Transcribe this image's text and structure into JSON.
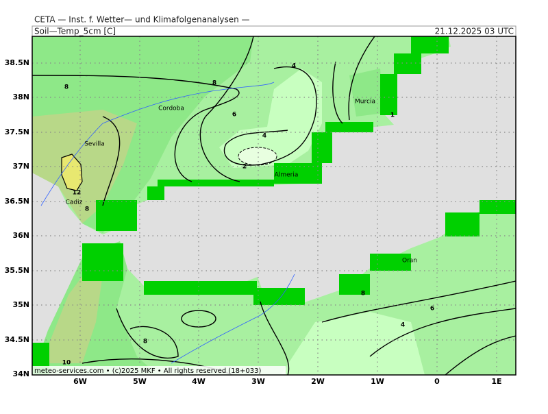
{
  "header": {
    "title": "CETA — Inst. f. Wetter— und Klimafolgenanalysen —",
    "parameter": "Soil—Temp_5cm [C]",
    "valid_time": "21.12.2025 03 UTC"
  },
  "map": {
    "lon_labels": [
      "6W",
      "5W",
      "4W",
      "3W",
      "2W",
      "1W",
      "0",
      "1E"
    ],
    "lat_labels": [
      "38.5N",
      "38N",
      "37.5N",
      "37N",
      "36.5N",
      "36N",
      "35.5N",
      "35N",
      "34.5N",
      "34N"
    ],
    "places": [
      "Cordoba",
      "Sevilla",
      "Cadiz",
      "Almeria",
      "Murcia",
      "Oran"
    ],
    "contour_labels": [
      "8",
      "8",
      "6",
      "4",
      "4",
      "2",
      "12",
      "8",
      "1",
      "8",
      "6",
      "4",
      "8",
      "10"
    ]
  },
  "footer": "meteo-services.com • (c)2025 MKF • All rights reserved (18+033)"
}
